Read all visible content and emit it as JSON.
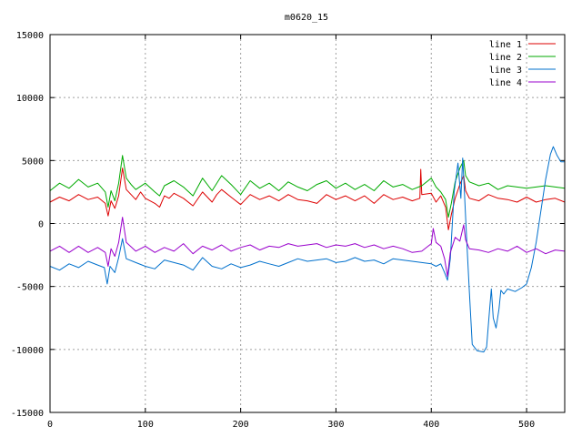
{
  "chart_data": {
    "type": "line",
    "title": "m0620_15",
    "xlabel": "",
    "ylabel": "",
    "xlim": [
      0,
      540
    ],
    "ylim": [
      -15000,
      15000
    ],
    "x_ticks": [
      0,
      100,
      200,
      300,
      400,
      500
    ],
    "y_ticks": [
      -15000,
      -10000,
      -5000,
      0,
      5000,
      10000,
      15000
    ],
    "x_tick_labels": [
      "0",
      "100",
      "200",
      "300",
      "400",
      "500"
    ],
    "y_tick_labels": [
      "-15000",
      "-10000",
      "-5000",
      "0",
      "5000",
      "10000",
      "15000"
    ],
    "grid": true,
    "legend_position": "top-right",
    "series": [
      {
        "name": "line 1",
        "color": "#dd0000",
        "points": [
          [
            0,
            1700
          ],
          [
            10,
            2100
          ],
          [
            20,
            1800
          ],
          [
            30,
            2300
          ],
          [
            40,
            1900
          ],
          [
            50,
            2100
          ],
          [
            58,
            1600
          ],
          [
            61,
            600
          ],
          [
            64,
            1800
          ],
          [
            68,
            1200
          ],
          [
            72,
            2200
          ],
          [
            76,
            4400
          ],
          [
            80,
            2700
          ],
          [
            85,
            2300
          ],
          [
            90,
            1900
          ],
          [
            95,
            2500
          ],
          [
            100,
            2000
          ],
          [
            110,
            1600
          ],
          [
            115,
            1300
          ],
          [
            120,
            2200
          ],
          [
            125,
            2000
          ],
          [
            130,
            2400
          ],
          [
            140,
            2000
          ],
          [
            150,
            1400
          ],
          [
            160,
            2500
          ],
          [
            170,
            1700
          ],
          [
            175,
            2300
          ],
          [
            180,
            2700
          ],
          [
            190,
            2100
          ],
          [
            200,
            1500
          ],
          [
            210,
            2300
          ],
          [
            220,
            1900
          ],
          [
            230,
            2200
          ],
          [
            240,
            1800
          ],
          [
            250,
            2300
          ],
          [
            260,
            1900
          ],
          [
            270,
            1800
          ],
          [
            280,
            1600
          ],
          [
            290,
            2300
          ],
          [
            300,
            1900
          ],
          [
            310,
            2200
          ],
          [
            320,
            1800
          ],
          [
            330,
            2200
          ],
          [
            340,
            1600
          ],
          [
            350,
            2300
          ],
          [
            360,
            1900
          ],
          [
            370,
            2100
          ],
          [
            380,
            1800
          ],
          [
            388,
            2000
          ],
          [
            389,
            4300
          ],
          [
            390,
            2300
          ],
          [
            400,
            2400
          ],
          [
            405,
            1700
          ],
          [
            410,
            2200
          ],
          [
            415,
            1300
          ],
          [
            418,
            -500
          ],
          [
            421,
            700
          ],
          [
            425,
            2000
          ],
          [
            430,
            3100
          ],
          [
            434,
            3800
          ],
          [
            436,
            2600
          ],
          [
            440,
            2000
          ],
          [
            450,
            1800
          ],
          [
            460,
            2300
          ],
          [
            470,
            2000
          ],
          [
            480,
            1900
          ],
          [
            490,
            1700
          ],
          [
            500,
            2100
          ],
          [
            510,
            1700
          ],
          [
            520,
            1900
          ],
          [
            530,
            2000
          ],
          [
            540,
            1700
          ]
        ]
      },
      {
        "name": "line 2",
        "color": "#00aa00",
        "points": [
          [
            0,
            2600
          ],
          [
            10,
            3200
          ],
          [
            20,
            2800
          ],
          [
            30,
            3500
          ],
          [
            40,
            2900
          ],
          [
            50,
            3200
          ],
          [
            58,
            2500
          ],
          [
            61,
            1300
          ],
          [
            64,
            2600
          ],
          [
            68,
            1800
          ],
          [
            72,
            3200
          ],
          [
            76,
            5400
          ],
          [
            80,
            3600
          ],
          [
            85,
            3100
          ],
          [
            90,
            2700
          ],
          [
            100,
            3200
          ],
          [
            110,
            2500
          ],
          [
            115,
            2200
          ],
          [
            120,
            3000
          ],
          [
            130,
            3400
          ],
          [
            140,
            2900
          ],
          [
            150,
            2200
          ],
          [
            160,
            3600
          ],
          [
            170,
            2600
          ],
          [
            180,
            3800
          ],
          [
            190,
            3100
          ],
          [
            200,
            2300
          ],
          [
            210,
            3400
          ],
          [
            220,
            2800
          ],
          [
            230,
            3200
          ],
          [
            240,
            2600
          ],
          [
            250,
            3300
          ],
          [
            260,
            2900
          ],
          [
            270,
            2600
          ],
          [
            280,
            3100
          ],
          [
            290,
            3400
          ],
          [
            300,
            2800
          ],
          [
            310,
            3200
          ],
          [
            320,
            2700
          ],
          [
            330,
            3100
          ],
          [
            340,
            2600
          ],
          [
            350,
            3400
          ],
          [
            360,
            2900
          ],
          [
            370,
            3100
          ],
          [
            380,
            2700
          ],
          [
            390,
            3000
          ],
          [
            400,
            3600
          ],
          [
            405,
            2900
          ],
          [
            410,
            2500
          ],
          [
            415,
            1900
          ],
          [
            418,
            500
          ],
          [
            421,
            1600
          ],
          [
            425,
            3300
          ],
          [
            430,
            4400
          ],
          [
            434,
            5000
          ],
          [
            436,
            3800
          ],
          [
            440,
            3300
          ],
          [
            450,
            3000
          ],
          [
            460,
            3200
          ],
          [
            470,
            2700
          ],
          [
            480,
            3000
          ],
          [
            490,
            2900
          ],
          [
            500,
            2800
          ],
          [
            510,
            2900
          ],
          [
            520,
            3000
          ],
          [
            530,
            2900
          ],
          [
            540,
            2800
          ]
        ]
      },
      {
        "name": "line 3",
        "color": "#0070cc",
        "points": [
          [
            0,
            -3400
          ],
          [
            10,
            -3700
          ],
          [
            20,
            -3200
          ],
          [
            30,
            -3500
          ],
          [
            40,
            -3000
          ],
          [
            50,
            -3300
          ],
          [
            57,
            -3500
          ],
          [
            60,
            -4800
          ],
          [
            63,
            -3400
          ],
          [
            68,
            -3900
          ],
          [
            72,
            -2700
          ],
          [
            76,
            -1200
          ],
          [
            80,
            -2800
          ],
          [
            90,
            -3100
          ],
          [
            100,
            -3400
          ],
          [
            110,
            -3600
          ],
          [
            120,
            -2900
          ],
          [
            130,
            -3100
          ],
          [
            140,
            -3300
          ],
          [
            150,
            -3700
          ],
          [
            160,
            -2700
          ],
          [
            170,
            -3400
          ],
          [
            180,
            -3600
          ],
          [
            190,
            -3200
          ],
          [
            200,
            -3500
          ],
          [
            210,
            -3300
          ],
          [
            220,
            -3000
          ],
          [
            230,
            -3200
          ],
          [
            240,
            -3400
          ],
          [
            250,
            -3100
          ],
          [
            260,
            -2800
          ],
          [
            270,
            -3000
          ],
          [
            280,
            -2900
          ],
          [
            290,
            -2800
          ],
          [
            300,
            -3100
          ],
          [
            310,
            -3000
          ],
          [
            320,
            -2700
          ],
          [
            330,
            -3000
          ],
          [
            340,
            -2900
          ],
          [
            350,
            -3200
          ],
          [
            360,
            -2800
          ],
          [
            370,
            -2900
          ],
          [
            380,
            -3000
          ],
          [
            390,
            -3100
          ],
          [
            400,
            -3200
          ],
          [
            405,
            -3400
          ],
          [
            410,
            -3200
          ],
          [
            414,
            -3900
          ],
          [
            417,
            -4500
          ],
          [
            420,
            -2800
          ],
          [
            424,
            2500
          ],
          [
            428,
            4800
          ],
          [
            431,
            2000
          ],
          [
            433,
            5200
          ],
          [
            435,
            2200
          ],
          [
            437,
            -1000
          ],
          [
            440,
            -5500
          ],
          [
            443,
            -9600
          ],
          [
            448,
            -10100
          ],
          [
            455,
            -10200
          ],
          [
            458,
            -9800
          ],
          [
            461,
            -7000
          ],
          [
            463,
            -5200
          ],
          [
            465,
            -7500
          ],
          [
            468,
            -8300
          ],
          [
            471,
            -6800
          ],
          [
            473,
            -5300
          ],
          [
            476,
            -5600
          ],
          [
            480,
            -5200
          ],
          [
            488,
            -5400
          ],
          [
            495,
            -5100
          ],
          [
            500,
            -4800
          ],
          [
            505,
            -3500
          ],
          [
            510,
            -1500
          ],
          [
            515,
            1000
          ],
          [
            520,
            3500
          ],
          [
            525,
            5500
          ],
          [
            528,
            6100
          ],
          [
            532,
            5400
          ],
          [
            536,
            4900
          ],
          [
            540,
            4900
          ]
        ]
      },
      {
        "name": "line 4",
        "color": "#9900cc",
        "points": [
          [
            0,
            -2200
          ],
          [
            10,
            -1800
          ],
          [
            20,
            -2300
          ],
          [
            30,
            -1800
          ],
          [
            40,
            -2300
          ],
          [
            50,
            -1900
          ],
          [
            58,
            -2300
          ],
          [
            61,
            -3400
          ],
          [
            64,
            -2000
          ],
          [
            68,
            -2600
          ],
          [
            72,
            -1500
          ],
          [
            76,
            500
          ],
          [
            80,
            -1500
          ],
          [
            90,
            -2200
          ],
          [
            100,
            -1800
          ],
          [
            110,
            -2300
          ],
          [
            120,
            -1900
          ],
          [
            130,
            -2200
          ],
          [
            140,
            -1600
          ],
          [
            150,
            -2400
          ],
          [
            160,
            -1800
          ],
          [
            170,
            -2100
          ],
          [
            180,
            -1700
          ],
          [
            190,
            -2200
          ],
          [
            200,
            -1900
          ],
          [
            210,
            -1700
          ],
          [
            220,
            -2100
          ],
          [
            230,
            -1800
          ],
          [
            240,
            -1900
          ],
          [
            250,
            -1600
          ],
          [
            260,
            -1800
          ],
          [
            270,
            -1700
          ],
          [
            280,
            -1600
          ],
          [
            290,
            -1900
          ],
          [
            300,
            -1700
          ],
          [
            310,
            -1800
          ],
          [
            320,
            -1600
          ],
          [
            330,
            -1900
          ],
          [
            340,
            -1700
          ],
          [
            350,
            -2000
          ],
          [
            360,
            -1800
          ],
          [
            370,
            -2000
          ],
          [
            380,
            -2300
          ],
          [
            390,
            -2200
          ],
          [
            400,
            -1600
          ],
          [
            402,
            -400
          ],
          [
            405,
            -1500
          ],
          [
            410,
            -1800
          ],
          [
            414,
            -2800
          ],
          [
            417,
            -4200
          ],
          [
            420,
            -2300
          ],
          [
            425,
            -1100
          ],
          [
            430,
            -1400
          ],
          [
            434,
            -100
          ],
          [
            436,
            -1300
          ],
          [
            440,
            -2000
          ],
          [
            450,
            -2100
          ],
          [
            460,
            -2300
          ],
          [
            470,
            -2000
          ],
          [
            480,
            -2200
          ],
          [
            490,
            -1800
          ],
          [
            500,
            -2300
          ],
          [
            510,
            -2000
          ],
          [
            520,
            -2400
          ],
          [
            530,
            -2100
          ],
          [
            540,
            -2200
          ]
        ]
      }
    ]
  }
}
